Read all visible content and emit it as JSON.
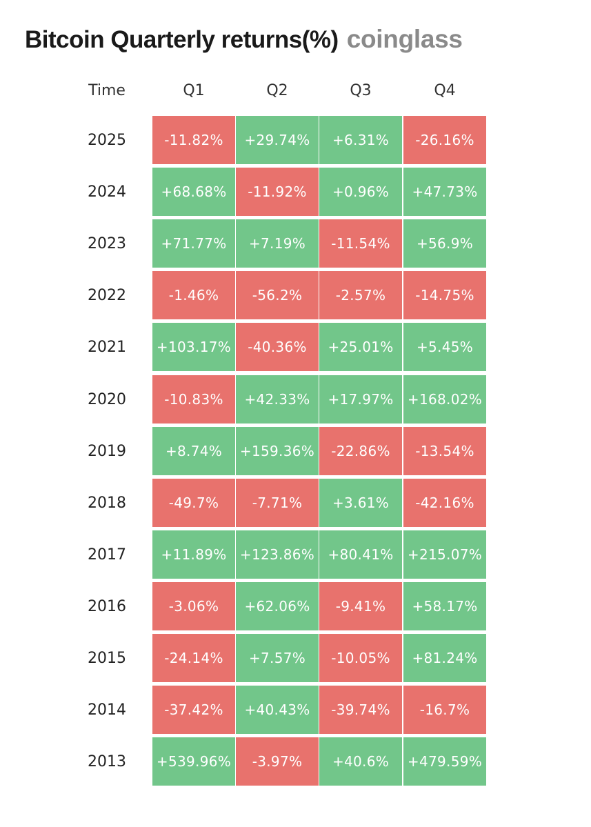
{
  "title": "Bitcoin Quarterly returns(%)",
  "brand": "coinglass",
  "colors": {
    "positive": "#72c68a",
    "negative": "#e8726d"
  },
  "chart_data": {
    "type": "table",
    "header_label": "Time",
    "columns": [
      "Q1",
      "Q2",
      "Q3",
      "Q4"
    ],
    "rows": [
      {
        "year": "2025",
        "values": [
          "-11.82%",
          "+29.74%",
          "+6.31%",
          "-26.16%"
        ]
      },
      {
        "year": "2024",
        "values": [
          "+68.68%",
          "-11.92%",
          "+0.96%",
          "+47.73%"
        ]
      },
      {
        "year": "2023",
        "values": [
          "+71.77%",
          "+7.19%",
          "-11.54%",
          "+56.9%"
        ]
      },
      {
        "year": "2022",
        "values": [
          "-1.46%",
          "-56.2%",
          "-2.57%",
          "-14.75%"
        ]
      },
      {
        "year": "2021",
        "values": [
          "+103.17%",
          "-40.36%",
          "+25.01%",
          "+5.45%"
        ]
      },
      {
        "year": "2020",
        "values": [
          "-10.83%",
          "+42.33%",
          "+17.97%",
          "+168.02%"
        ]
      },
      {
        "year": "2019",
        "values": [
          "+8.74%",
          "+159.36%",
          "-22.86%",
          "-13.54%"
        ]
      },
      {
        "year": "2018",
        "values": [
          "-49.7%",
          "-7.71%",
          "+3.61%",
          "-42.16%"
        ]
      },
      {
        "year": "2017",
        "values": [
          "+11.89%",
          "+123.86%",
          "+80.41%",
          "+215.07%"
        ]
      },
      {
        "year": "2016",
        "values": [
          "-3.06%",
          "+62.06%",
          "-9.41%",
          "+58.17%"
        ]
      },
      {
        "year": "2015",
        "values": [
          "-24.14%",
          "+7.57%",
          "-10.05%",
          "+81.24%"
        ]
      },
      {
        "year": "2014",
        "values": [
          "-37.42%",
          "+40.43%",
          "-39.74%",
          "-16.7%"
        ]
      },
      {
        "year": "2013",
        "values": [
          "+539.96%",
          "-3.97%",
          "+40.6%",
          "+479.59%"
        ]
      }
    ]
  }
}
